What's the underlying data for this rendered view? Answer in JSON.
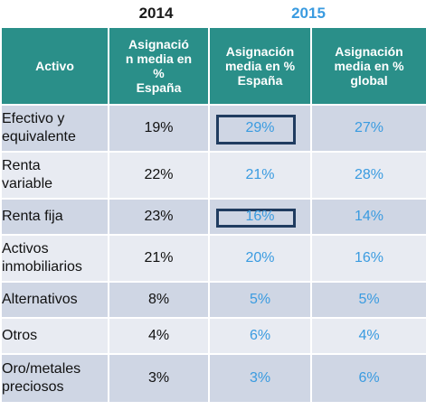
{
  "years": {
    "y2014": "2014",
    "y2015": "2015"
  },
  "headers": {
    "activo": "Activo",
    "col2014": "Asignació\nn media en\n%\nEspaña",
    "col2015_spain": "Asignación\nmedia en %\nEspaña",
    "col2015_global": "Asignación\nmedia en %\nglobal"
  },
  "rows": [
    {
      "label": "Efectivo y\nequivalente",
      "v2014": "19%",
      "v2015_spain": "29%",
      "v2015_global": "27%"
    },
    {
      "label": "Renta\nvariable",
      "v2014": "22%",
      "v2015_spain": "21%",
      "v2015_global": "28%"
    },
    {
      "label": "Renta fija",
      "v2014": "23%",
      "v2015_spain": "16%",
      "v2015_global": "14%"
    },
    {
      "label": "Activos\ninmobiliarios",
      "v2014": "21%",
      "v2015_spain": "20%",
      "v2015_global": "16%"
    },
    {
      "label": "Alternativos",
      "v2014": "8%",
      "v2015_spain": "5%",
      "v2015_global": "5%"
    },
    {
      "label": "Otros",
      "v2014": "4%",
      "v2015_spain": "6%",
      "v2015_global": "4%"
    },
    {
      "label": "Oro/metales\npreciosos",
      "v2014": "3%",
      "v2015_spain": "3%",
      "v2015_global": "6%"
    }
  ],
  "colors": {
    "header_bg": "#2a8f89",
    "row_dark": "#cfd6e4",
    "row_light": "#e8ebf2",
    "text_2015": "#3a9be0",
    "highlight_border": "#203c60"
  },
  "chart_data": {
    "type": "table",
    "columns": [
      "Activo",
      "Asignación media en % España (2014)",
      "Asignación media en % España (2015)",
      "Asignación media en % global (2015)"
    ],
    "categories": [
      "Efectivo y equivalente",
      "Renta variable",
      "Renta fija",
      "Activos inmobiliarios",
      "Alternativos",
      "Otros",
      "Oro/metales preciosos"
    ],
    "series": [
      {
        "name": "2014",
        "values": [
          19,
          22,
          23,
          21,
          8,
          4,
          3
        ]
      },
      {
        "name": "2015",
        "values": [
          29,
          21,
          16,
          20,
          5,
          6,
          3
        ]
      },
      {
        "name": "global",
        "values": [
          27,
          28,
          14,
          16,
          5,
          4,
          6
        ]
      }
    ],
    "highlighted": [
      {
        "row": "Efectivo y equivalente",
        "column": "Asignación media en % España (2015)"
      },
      {
        "row": "Renta fija",
        "column": "Asignación media en % España (2015)"
      }
    ]
  }
}
